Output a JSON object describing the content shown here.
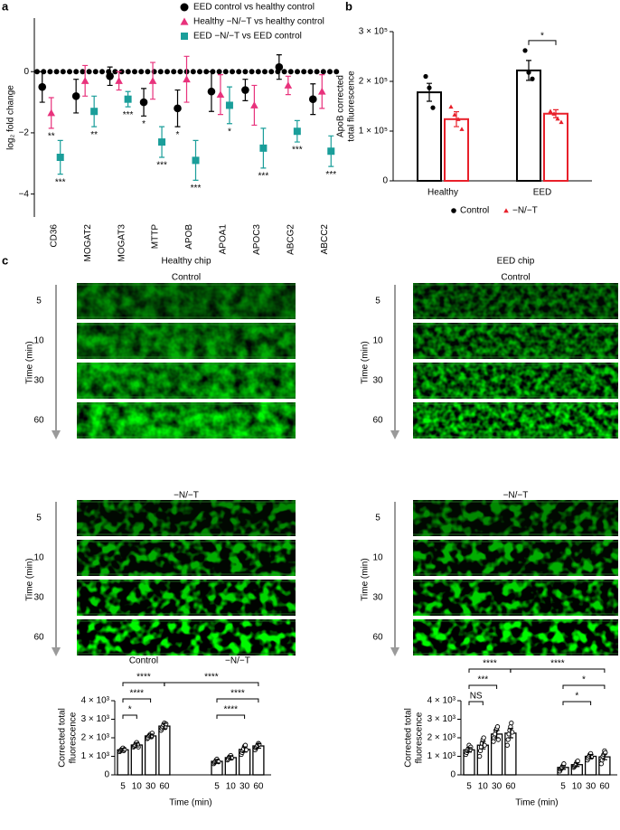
{
  "chart_data": [
    {
      "type": "dot",
      "panel": "a",
      "ylabel": "log₂ fold change",
      "categories": [
        "CD36",
        "MOGAT2",
        "MOGAT3",
        "MTTP",
        "APOB",
        "APOA1",
        "APOC3",
        "ABCG2",
        "ABCC2"
      ],
      "ylim": [
        -4.75,
        1.75
      ],
      "yticks": [
        0,
        {
          "value": -2,
          "label": "−2"
        },
        {
          "value": -4,
          "label": "−4"
        }
      ],
      "reference_line": 0,
      "legend": "top",
      "series": [
        {
          "name": "EED control vs healthy control",
          "color": "#000000",
          "marker": "circle",
          "values": [
            -0.5,
            -0.8,
            -0.15,
            -1.0,
            -1.2,
            -0.65,
            -0.6,
            0.15,
            -0.9
          ],
          "errors": [
            0.5,
            0.55,
            0.3,
            0.45,
            0.6,
            0.65,
            0.35,
            0.4,
            0.5
          ],
          "sig": [
            null,
            null,
            null,
            "*",
            "*",
            null,
            null,
            null,
            null
          ]
        },
        {
          "name": "Healthy −N/−T vs healthy control",
          "color": "#e8327c",
          "marker": "triangle",
          "values": [
            -1.35,
            -0.3,
            -0.3,
            -0.3,
            -0.25,
            -0.75,
            -1.1,
            -0.45,
            -0.65
          ],
          "errors": [
            0.5,
            0.5,
            0.3,
            0.6,
            0.75,
            0.65,
            0.65,
            0.3,
            0.55
          ],
          "sig": [
            "**",
            null,
            null,
            null,
            null,
            null,
            null,
            null,
            null
          ]
        },
        {
          "name": "EED −N/−T vs EED control",
          "color": "#1a9e9a",
          "marker": "square",
          "values": [
            -2.8,
            -1.3,
            -0.9,
            -2.3,
            -2.9,
            -1.1,
            -2.5,
            -1.95,
            -2.6
          ],
          "errors": [
            0.55,
            0.5,
            0.25,
            0.5,
            0.65,
            0.6,
            0.65,
            0.35,
            0.5
          ],
          "sig": [
            "***",
            "**",
            "***",
            "***",
            "***",
            "*",
            "***",
            "***",
            "***"
          ]
        }
      ]
    },
    {
      "type": "bar",
      "panel": "b",
      "ylabel": [
        "ApoB corrected",
        "total fluorescence"
      ],
      "categories": [
        "Healthy",
        "EED"
      ],
      "ylim": [
        0,
        300000
      ],
      "yticks": [
        0,
        {
          "value": 100000,
          "label": "1 × 10⁵"
        },
        {
          "value": 200000,
          "label": "2 × 10⁵"
        },
        {
          "value": 300000,
          "label": "3 × 10⁵"
        }
      ],
      "legend": "bottom",
      "series": [
        {
          "name": "Control",
          "color": "#000000",
          "marker": "circle",
          "values": [
            178000,
            222000
          ],
          "errors": [
            18000,
            20000
          ],
          "points": [
            [
              210000,
              187000,
              147000
            ],
            [
              262000,
              218000,
              205000
            ]
          ]
        },
        {
          "name": "−N/−T",
          "color": "#e8202a",
          "marker": "triangle",
          "values": [
            124000,
            135000
          ],
          "errors": [
            15000,
            8000
          ],
          "points": [
            [
              149000,
              133000,
              124000,
              104000
            ],
            [
              140000,
              135000,
              125000,
              118000
            ]
          ]
        }
      ],
      "brackets": [
        {
          "category": "EED",
          "label": "*"
        }
      ]
    },
    {
      "type": "bar",
      "ylabel": [
        "Corrected total",
        "fluorescence"
      ],
      "xlabel": "Time (min)",
      "groups": [
        "Control",
        "−N/−T"
      ],
      "categories": [
        "5",
        "10",
        "30",
        "60",
        "5",
        "10",
        "30",
        "60"
      ],
      "ylim": [
        0,
        4000
      ],
      "yticks": [
        0,
        {
          "value": 1000,
          "label": "1 × 10³"
        },
        {
          "value": 2000,
          "label": "2 × 10³"
        },
        {
          "value": 3000,
          "label": "3 × 10³"
        },
        {
          "value": 4000,
          "label": "4 × 10³"
        }
      ],
      "color": "#000000",
      "values": [
        1350,
        1610,
        2100,
        2630,
        730,
        930,
        1370,
        1560
      ],
      "errors": [
        70,
        100,
        100,
        150,
        90,
        100,
        140,
        120
      ],
      "points": [
        [
          1250,
          1300,
          1350,
          1400,
          1450,
          1300,
          1380
        ],
        [
          1500,
          1550,
          1600,
          1700,
          1750,
          1650,
          1500
        ],
        [
          1950,
          2000,
          2100,
          2150,
          2200,
          2050,
          2250
        ],
        [
          2400,
          2500,
          2600,
          2700,
          2800,
          2550,
          2750
        ],
        [
          600,
          650,
          700,
          800,
          850,
          750,
          700
        ],
        [
          800,
          850,
          950,
          1000,
          1050,
          900
        ],
        [
          1100,
          1200,
          1300,
          1400,
          1550,
          1600,
          1350
        ],
        [
          1350,
          1450,
          1500,
          1600,
          1700,
          1650
        ]
      ],
      "brackets": [
        {
          "pair": [
            0,
            1
          ],
          "label": "*"
        },
        {
          "pair": [
            0,
            2
          ],
          "label": "****"
        },
        {
          "pair": [
            0,
            3
          ],
          "label": "****"
        },
        {
          "pair": [
            3,
            7
          ],
          "label": "****"
        },
        {
          "pair": [
            4,
            7
          ],
          "label": "****"
        },
        {
          "pair": [
            4,
            6
          ],
          "label": "****"
        }
      ]
    },
    {
      "type": "bar",
      "ylabel": [
        "Corrected total",
        "fluorescence"
      ],
      "xlabel": "Time (min)",
      "groups": [
        "Control",
        "−N/−T"
      ],
      "categories": [
        "5",
        "10",
        "30",
        "60",
        "5",
        "10",
        "30",
        "60"
      ],
      "ylim": [
        0,
        4000
      ],
      "yticks": [
        0,
        {
          "value": 1000,
          "label": "1 × 10³"
        },
        {
          "value": 2000,
          "label": "2 × 10³"
        },
        {
          "value": 3000,
          "label": "3 × 10³"
        },
        {
          "value": 4000,
          "label": "4 × 10³"
        }
      ],
      "color": "#000000",
      "values": [
        1350,
        1600,
        2200,
        2250,
        400,
        550,
        1000,
        970
      ],
      "errors": [
        120,
        200,
        200,
        250,
        100,
        100,
        100,
        150
      ],
      "points": [
        [
          1100,
          1200,
          1300,
          1400,
          1600,
          1350,
          1500
        ],
        [
          1000,
          1300,
          1500,
          1700,
          1900,
          2000,
          1600
        ],
        [
          1800,
          2000,
          2200,
          2400,
          2500,
          2600,
          1900
        ],
        [
          1600,
          1900,
          2200,
          2400,
          2600,
          2800,
          2300
        ],
        [
          200,
          300,
          350,
          400,
          500,
          600
        ],
        [
          400,
          450,
          500,
          600,
          700,
          750
        ],
        [
          800,
          900,
          1000,
          1100,
          1150,
          950
        ],
        [
          600,
          800,
          1000,
          1100,
          1300,
          1200
        ]
      ],
      "brackets": [
        {
          "pair": [
            0,
            1
          ],
          "label": "NS"
        },
        {
          "pair": [
            0,
            2
          ],
          "label": "***"
        },
        {
          "pair": [
            0,
            3
          ],
          "label": "****"
        },
        {
          "pair": [
            3,
            7
          ],
          "label": "****"
        },
        {
          "pair": [
            4,
            7
          ],
          "label": "*"
        },
        {
          "pair": [
            4,
            6
          ],
          "label": "*"
        }
      ]
    }
  ],
  "panel_c": {
    "label": "c",
    "chips": [
      {
        "title": "Healthy chip"
      },
      {
        "title": "EED chip"
      }
    ],
    "conditions": [
      "Control",
      "−N/−T"
    ],
    "times": [
      5,
      10,
      30,
      60
    ],
    "time_label": "Time (min)"
  }
}
